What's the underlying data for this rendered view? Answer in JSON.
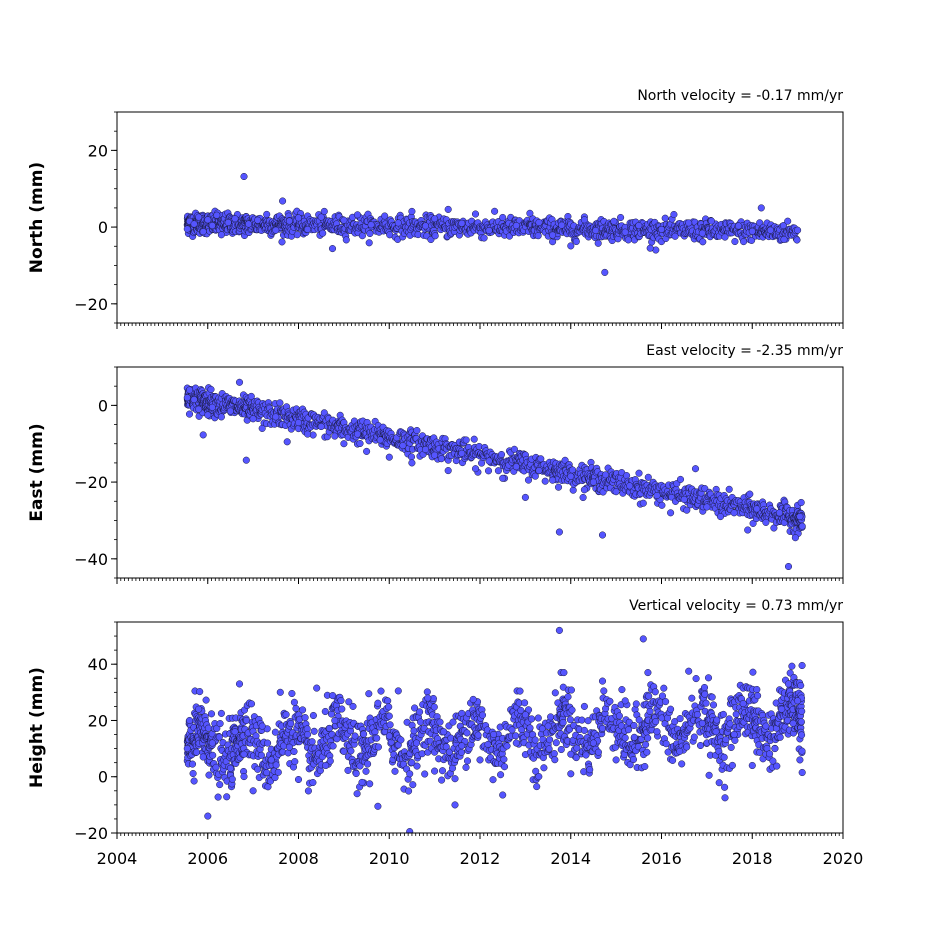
{
  "colors": {
    "marker_fill": "#5555ff",
    "marker_edge": "#1a1a40",
    "axes": "#000000",
    "background": "#ffffff"
  },
  "chart_data": [
    {
      "type": "scatter",
      "title": "North velocity = -0.17 mm/yr",
      "ylabel": "North (mm)",
      "xlabel": "",
      "xlim": [
        2004,
        2020
      ],
      "ylim": [
        -25,
        30
      ],
      "yticks": [
        -20,
        0,
        20
      ],
      "grid": false,
      "series": [
        {
          "points": [
            [
              2005.55,
              -0.5
            ],
            [
              2005.6,
              1.5
            ],
            [
              2005.7,
              0.8
            ],
            [
              2005.8,
              2.6
            ],
            [
              2005.9,
              -1.2
            ],
            [
              2006.0,
              1.9
            ],
            [
              2006.1,
              0.4
            ],
            [
              2006.2,
              3.1
            ],
            [
              2006.3,
              -2.0
            ],
            [
              2006.45,
              1.2
            ],
            [
              2006.6,
              2.2
            ],
            [
              2006.8,
              13.2
            ],
            [
              2006.9,
              0.8
            ],
            [
              2007.1,
              1.8
            ],
            [
              2007.3,
              3.3
            ],
            [
              2007.5,
              -0.8
            ],
            [
              2007.65,
              6.8
            ],
            [
              2007.8,
              1.6
            ],
            [
              2008.0,
              2.4
            ],
            [
              2008.2,
              -0.6
            ],
            [
              2008.5,
              2.6
            ],
            [
              2008.75,
              -5.6
            ],
            [
              2009.0,
              1.8
            ],
            [
              2009.3,
              3.2
            ],
            [
              2009.6,
              0.6
            ],
            [
              2009.9,
              2.9
            ],
            [
              2010.2,
              1.1
            ],
            [
              2010.5,
              4.1
            ],
            [
              2010.8,
              0.3
            ],
            [
              2011.0,
              2.2
            ],
            [
              2011.3,
              4.6
            ],
            [
              2011.6,
              1.0
            ],
            [
              2011.9,
              3.4
            ],
            [
              2012.2,
              -0.9
            ],
            [
              2012.5,
              2.5
            ],
            [
              2012.8,
              0.4
            ],
            [
              2013.1,
              3.6
            ],
            [
              2013.3,
              1.2
            ],
            [
              2013.6,
              -2.1
            ],
            [
              2013.8,
              0.5
            ],
            [
              2014.0,
              -4.9
            ],
            [
              2014.3,
              1.9
            ],
            [
              2014.55,
              -0.9
            ],
            [
              2014.75,
              -11.8
            ],
            [
              2014.95,
              1.5
            ],
            [
              2015.2,
              -1.3
            ],
            [
              2015.5,
              0.4
            ],
            [
              2015.75,
              -5.5
            ],
            [
              2016.0,
              -0.6
            ],
            [
              2016.3,
              -2.4
            ],
            [
              2016.6,
              1.1
            ],
            [
              2016.9,
              -1.6
            ],
            [
              2017.1,
              1.6
            ],
            [
              2017.4,
              -2.6
            ],
            [
              2017.7,
              0.3
            ],
            [
              2018.0,
              -1.1
            ],
            [
              2018.2,
              5.0
            ],
            [
              2018.4,
              -0.8
            ],
            [
              2018.7,
              -3.2
            ],
            [
              2019.0,
              -0.8
            ]
          ]
        }
      ]
    },
    {
      "type": "scatter",
      "title": "East velocity = -2.35 mm/yr",
      "ylabel": "East (mm)",
      "xlabel": "",
      "xlim": [
        2004,
        2020
      ],
      "ylim": [
        -45,
        10
      ],
      "yticks": [
        -40,
        -20,
        0
      ],
      "grid": false,
      "series": [
        {
          "points": [
            [
              2005.55,
              2.0
            ],
            [
              2005.6,
              4.0
            ],
            [
              2005.7,
              1.5
            ],
            [
              2005.8,
              -1.0
            ],
            [
              2005.9,
              -7.7
            ],
            [
              2006.0,
              -2.5
            ],
            [
              2006.1,
              -0.5
            ],
            [
              2006.3,
              -3.0
            ],
            [
              2006.5,
              -1.5
            ],
            [
              2006.7,
              6.0
            ],
            [
              2006.85,
              -14.3
            ],
            [
              2007.0,
              -3.5
            ],
            [
              2007.2,
              -6.0
            ],
            [
              2007.5,
              -3.0
            ],
            [
              2007.75,
              -9.5
            ],
            [
              2008.0,
              -4.5
            ],
            [
              2008.2,
              -7.5
            ],
            [
              2008.5,
              -5.5
            ],
            [
              2008.8,
              -8.0
            ],
            [
              2009.0,
              -10.0
            ],
            [
              2009.3,
              -7.5
            ],
            [
              2009.5,
              -12.0
            ],
            [
              2009.8,
              -9.0
            ],
            [
              2010.0,
              -13.5
            ],
            [
              2010.3,
              -10.5
            ],
            [
              2010.5,
              -15.0
            ],
            [
              2010.8,
              -11.5
            ],
            [
              2011.0,
              -13.0
            ],
            [
              2011.3,
              -17.0
            ],
            [
              2011.6,
              -12.5
            ],
            [
              2011.9,
              -16.5
            ],
            [
              2012.2,
              -14.5
            ],
            [
              2012.5,
              -19.0
            ],
            [
              2012.8,
              -16.0
            ],
            [
              2013.0,
              -24.0
            ],
            [
              2013.3,
              -17.0
            ],
            [
              2013.6,
              -19.5
            ],
            [
              2013.75,
              -33.0
            ],
            [
              2014.0,
              -18.5
            ],
            [
              2014.3,
              -22.0
            ],
            [
              2014.5,
              -20.0
            ],
            [
              2014.7,
              -33.8
            ],
            [
              2015.0,
              -22.5
            ],
            [
              2015.3,
              -21.0
            ],
            [
              2015.6,
              -25.5
            ],
            [
              2015.9,
              -23.5
            ],
            [
              2016.2,
              -28.0
            ],
            [
              2016.5,
              -24.5
            ],
            [
              2016.75,
              -16.5
            ],
            [
              2017.0,
              -26.5
            ],
            [
              2017.3,
              -29.0
            ],
            [
              2017.6,
              -28.0
            ],
            [
              2017.9,
              -32.5
            ],
            [
              2018.1,
              -27.0
            ],
            [
              2018.3,
              -30.5
            ],
            [
              2018.6,
              -28.0
            ],
            [
              2018.8,
              -42.0
            ],
            [
              2018.95,
              -34.5
            ],
            [
              2019.05,
              -29.0
            ],
            [
              2019.1,
              -31.5
            ]
          ]
        }
      ]
    },
    {
      "type": "scatter",
      "title": "Vertical velocity = 0.73 mm/yr",
      "ylabel": "Height (mm)",
      "xlabel": "",
      "xlim": [
        2004,
        2020
      ],
      "ylim": [
        -20,
        55
      ],
      "yticks": [
        -20,
        0,
        20,
        40
      ],
      "xticks": [
        2004,
        2006,
        2008,
        2010,
        2012,
        2014,
        2016,
        2018,
        2020
      ],
      "grid": false,
      "series": [
        {
          "points": [
            [
              2005.55,
              10.0
            ],
            [
              2005.6,
              20.0
            ],
            [
              2005.7,
              -1.5
            ],
            [
              2005.8,
              24.0
            ],
            [
              2005.9,
              7.0
            ],
            [
              2006.0,
              -14.0
            ],
            [
              2006.1,
              12.0
            ],
            [
              2006.3,
              22.5
            ],
            [
              2006.5,
              3.0
            ],
            [
              2006.6,
              16.0
            ],
            [
              2006.7,
              33.0
            ],
            [
              2006.8,
              8.0
            ],
            [
              2007.0,
              -5.0
            ],
            [
              2007.2,
              18.0
            ],
            [
              2007.4,
              6.0
            ],
            [
              2007.6,
              30.0
            ],
            [
              2007.8,
              10.5
            ],
            [
              2008.0,
              -1.0
            ],
            [
              2008.2,
              15.0
            ],
            [
              2008.4,
              31.5
            ],
            [
              2008.6,
              4.0
            ],
            [
              2008.8,
              20.0
            ],
            [
              2009.0,
              9.0
            ],
            [
              2009.2,
              25.0
            ],
            [
              2009.4,
              -2.0
            ],
            [
              2009.55,
              29.5
            ],
            [
              2009.75,
              -10.5
            ],
            [
              2010.0,
              14.5
            ],
            [
              2010.2,
              30.5
            ],
            [
              2010.45,
              -19.5
            ],
            [
              2010.6,
              12.0
            ],
            [
              2010.85,
              28.0
            ],
            [
              2011.0,
              2.0
            ],
            [
              2011.2,
              16.0
            ],
            [
              2011.45,
              -10.0
            ],
            [
              2011.6,
              11.0
            ],
            [
              2011.85,
              27.5
            ],
            [
              2012.0,
              6.0
            ],
            [
              2012.3,
              15.0
            ],
            [
              2012.5,
              -6.5
            ],
            [
              2012.8,
              12.0
            ],
            [
              2013.0,
              22.0
            ],
            [
              2013.25,
              -3.5
            ],
            [
              2013.5,
              18.0
            ],
            [
              2013.75,
              52.0
            ],
            [
              2013.85,
              37.0
            ],
            [
              2014.0,
              8.0
            ],
            [
              2014.3,
              25.0
            ],
            [
              2014.5,
              12.0
            ],
            [
              2014.7,
              34.0
            ],
            [
              2015.0,
              6.0
            ],
            [
              2015.2,
              27.0
            ],
            [
              2015.4,
              14.0
            ],
            [
              2015.6,
              49.0
            ],
            [
              2015.7,
              37.0
            ],
            [
              2015.9,
              16.0
            ],
            [
              2016.2,
              24.0
            ],
            [
              2016.4,
              9.0
            ],
            [
              2016.6,
              37.5
            ],
            [
              2016.9,
              19.0
            ],
            [
              2017.05,
              0.5
            ],
            [
              2017.2,
              16.0
            ],
            [
              2017.4,
              -7.5
            ],
            [
              2017.6,
              15.0
            ],
            [
              2017.8,
              26.0
            ],
            [
              2018.0,
              4.0
            ],
            [
              2018.1,
              31.0
            ],
            [
              2018.3,
              18.0
            ],
            [
              2018.5,
              10.0
            ],
            [
              2018.65,
              24.0
            ],
            [
              2018.8,
              33.0
            ],
            [
              2018.9,
              19.0
            ],
            [
              2019.0,
              27.0
            ],
            [
              2019.05,
              6.0
            ],
            [
              2019.1,
              1.5
            ]
          ]
        }
      ]
    }
  ]
}
